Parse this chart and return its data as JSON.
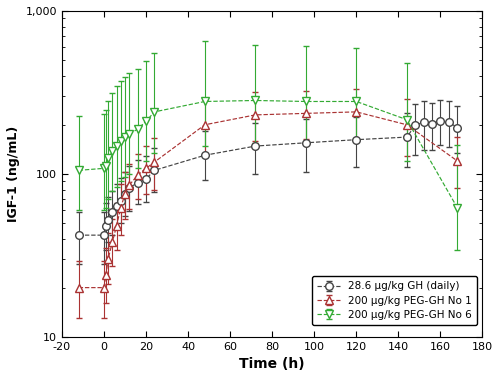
{
  "xlabel": "Time (h)",
  "ylabel": "IGF-1 (ng/mL)",
  "xlim": [
    -20,
    180
  ],
  "ylim": [
    10,
    1000
  ],
  "xticks": [
    -20,
    0,
    20,
    40,
    60,
    80,
    100,
    120,
    140,
    160,
    180
  ],
  "daily_gh": {
    "label": "28.6 μg/kg GH (daily)",
    "color": "#444444",
    "linestyle": "--",
    "marker": "o",
    "x": [
      -12,
      0,
      1,
      2,
      4,
      6,
      8,
      10,
      12,
      16,
      20,
      24,
      48,
      72,
      96,
      120,
      144,
      148,
      152,
      156,
      160,
      164,
      168
    ],
    "y": [
      42,
      42,
      48,
      52,
      58,
      63,
      68,
      75,
      82,
      88,
      93,
      105,
      130,
      148,
      155,
      162,
      168,
      198,
      208,
      202,
      212,
      208,
      192
    ],
    "yerr_lo": [
      14,
      14,
      14,
      14,
      16,
      16,
      18,
      20,
      23,
      23,
      26,
      28,
      38,
      48,
      52,
      52,
      58,
      68,
      68,
      62,
      62,
      62,
      58
    ],
    "yerr_hi": [
      16,
      16,
      18,
      20,
      20,
      23,
      26,
      28,
      30,
      33,
      36,
      38,
      52,
      58,
      62,
      62,
      68,
      72,
      72,
      72,
      72,
      72,
      68
    ]
  },
  "peg_gh_no1": {
    "label": "200 μg/kg PEG-GH No 1",
    "color": "#aa3333",
    "linestyle": "--",
    "marker": "^",
    "x": [
      -12,
      0,
      1,
      2,
      4,
      6,
      8,
      10,
      12,
      16,
      20,
      24,
      48,
      72,
      96,
      120,
      144,
      168
    ],
    "y": [
      20,
      20,
      24,
      30,
      38,
      48,
      62,
      75,
      85,
      98,
      108,
      118,
      200,
      230,
      235,
      240,
      200,
      120
    ],
    "yerr_lo": [
      7,
      7,
      8,
      9,
      11,
      14,
      20,
      22,
      24,
      28,
      33,
      38,
      68,
      72,
      72,
      78,
      72,
      38
    ],
    "yerr_hi": [
      9,
      9,
      11,
      13,
      15,
      18,
      24,
      28,
      30,
      35,
      40,
      48,
      82,
      88,
      88,
      92,
      88,
      48
    ]
  },
  "peg_gh_no6": {
    "label": "200 μg/kg PEG-GH No 6",
    "color": "#33aa33",
    "linestyle": "--",
    "marker": "v",
    "x": [
      -12,
      0,
      1,
      2,
      4,
      6,
      8,
      10,
      12,
      16,
      20,
      24,
      48,
      72,
      96,
      120,
      144,
      168
    ],
    "y": [
      105,
      108,
      112,
      125,
      138,
      148,
      158,
      168,
      175,
      188,
      210,
      240,
      278,
      282,
      278,
      278,
      215,
      62
    ],
    "yerr_lo": [
      45,
      48,
      50,
      55,
      60,
      65,
      68,
      72,
      75,
      80,
      90,
      105,
      130,
      128,
      120,
      115,
      95,
      28
    ],
    "yerr_hi": [
      120,
      125,
      135,
      155,
      175,
      200,
      215,
      225,
      240,
      255,
      280,
      310,
      380,
      340,
      330,
      318,
      265,
      88
    ]
  },
  "background_color": "#ffffff"
}
